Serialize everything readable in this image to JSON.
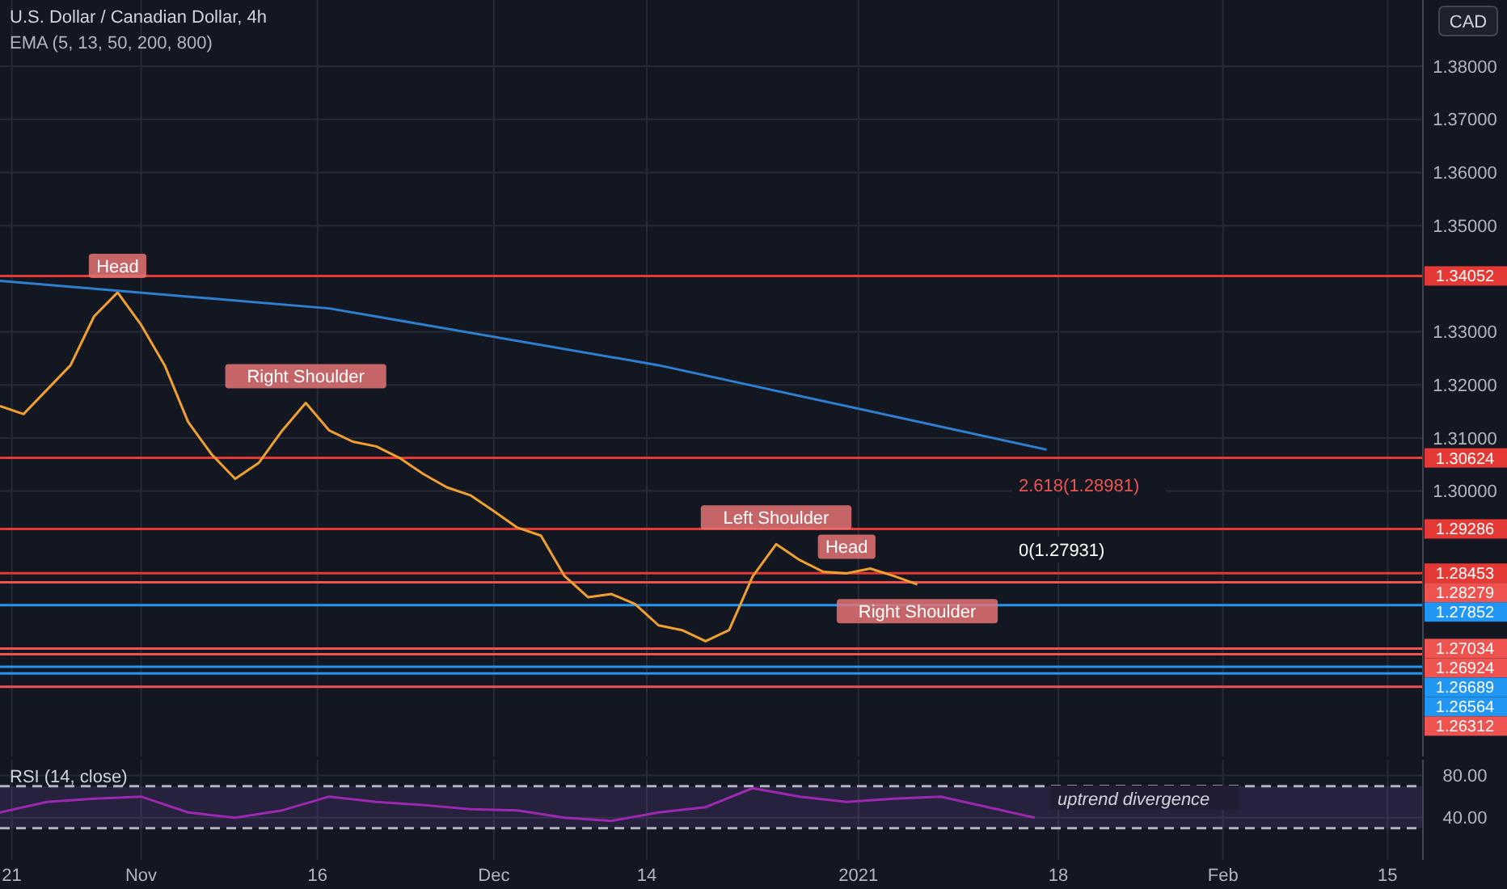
{
  "chart_data": [
    {
      "type": "line",
      "title": "U.S. Dollar / Canadian Dollar, 4h",
      "subtitle": "EMA (5, 13, 50, 200, 800)",
      "xlim": [
        "2020-10-20",
        "2021-02-18"
      ],
      "xticks": [
        {
          "value": "2020-10-21",
          "label": null
        },
        {
          "value": "2020-11-01",
          "label": null
        },
        {
          "value": "2020-11-16",
          "label": null
        },
        {
          "value": "2020-12-01",
          "label": null
        },
        {
          "value": "2020-12-14",
          "label": null
        },
        {
          "value": "2021-01-01",
          "label": null
        },
        {
          "value": "2021-01-18",
          "label": null
        },
        {
          "value": "2021-02-01",
          "label": null
        },
        {
          "value": "2021-02-15",
          "label": null
        }
      ],
      "ylim": [
        1.25,
        1.3925
      ],
      "legend": "right",
      "yticks": [
        {
          "value": 1.3,
          "label": "1.30000"
        },
        {
          "value": 1.31,
          "label": "1.31000"
        },
        {
          "value": 1.32,
          "label": "1.32000"
        },
        {
          "value": 1.33,
          "label": "1.33000"
        },
        {
          "value": 1.35,
          "label": "1.35000"
        },
        {
          "value": 1.36,
          "label": "1.36000"
        },
        {
          "value": 1.37,
          "label": "1.37000"
        },
        {
          "value": 1.38,
          "label": "1.38000"
        }
      ],
      "tick_labels": "y",
      "grid": true,
      "series": [
        {
          "color": "#f0a030",
          "x": [
            "2020-10-20",
            "2020-10-22",
            "2020-10-24",
            "2020-10-26",
            "2020-10-28",
            "2020-10-30",
            "2020-11-01",
            "2020-11-03",
            "2020-11-05",
            "2020-11-07",
            "2020-11-09",
            "2020-11-11",
            "2020-11-13",
            "2020-11-15",
            "2020-11-17",
            "2020-11-19",
            "2020-11-21",
            "2020-11-23",
            "2020-11-25",
            "2020-11-27",
            "2020-11-29",
            "2020-12-01",
            "2020-12-03",
            "2020-12-05",
            "2020-12-07",
            "2020-12-09",
            "2020-12-11",
            "2020-12-13",
            "2020-12-15",
            "2020-12-17",
            "2020-12-19",
            "2020-12-21",
            "2020-12-23",
            "2020-12-25",
            "2020-12-27",
            "2020-12-29",
            "2020-12-31",
            "2021-01-02",
            "2021-01-04",
            "2021-01-06"
          ],
          "values": [
            1.316,
            1.3145,
            1.3191,
            1.3237,
            1.3329,
            1.3374,
            1.3313,
            1.3237,
            1.313,
            1.3069,
            1.3023,
            1.3053,
            1.3114,
            1.3166,
            1.3114,
            1.3093,
            1.3084,
            1.3062,
            1.3032,
            1.3007,
            1.2992,
            1.2962,
            1.2931,
            1.2916,
            1.284,
            1.28,
            1.2806,
            1.2787,
            1.2747,
            1.2738,
            1.2717,
            1.2738,
            1.2839,
            1.29,
            1.287,
            1.2848,
            1.2845,
            1.2854,
            1.284,
            1.2824
          ]
        },
        {
          "color": "#2f7fd0",
          "x": [
            "2020-10-20",
            "2020-11-17",
            "2020-12-15",
            "2021-01-17"
          ],
          "values": [
            1.3396,
            1.3344,
            1.3237,
            1.3078
          ]
        }
      ],
      "ref_lines": [
        {
          "axis": "y",
          "value": 1.34052,
          "label": "1.34052",
          "color": "#e53935"
        },
        {
          "axis": "y",
          "value": 1.30624,
          "label": "1.30624",
          "color": "#e53935"
        },
        {
          "axis": "y",
          "value": 1.29286,
          "label": "1.29286",
          "color": "#e53935"
        },
        {
          "axis": "y",
          "value": 1.28453,
          "label": "1.28453",
          "color": "#e53935"
        },
        {
          "axis": "y",
          "value": 1.28279,
          "label": "1.28279",
          "color": "#ef5350"
        },
        {
          "axis": "y",
          "value": 1.27852,
          "label": "1.27852",
          "color": "#2196f3"
        },
        {
          "axis": "y",
          "value": 1.27034,
          "label": "1.27034",
          "color": "#ef5350"
        },
        {
          "axis": "y",
          "value": 1.26924,
          "label": "1.26924",
          "color": "#ef5350"
        },
        {
          "axis": "y",
          "value": 1.26689,
          "label": "1.26689",
          "color": "#2196f3"
        },
        {
          "axis": "y",
          "value": 1.26564,
          "label": "1.26564",
          "color": "#2196f3"
        },
        {
          "axis": "y",
          "value": 1.26312,
          "label": "1.26312",
          "color": "#ef5350"
        }
      ],
      "annotations": [
        "CAD",
        {
          "text": "Head",
          "x": "2020-10-30",
          "y": 1.3374
        },
        {
          "text": "Right Shoulder",
          "x": "2020-11-15",
          "y": 1.3166
        },
        {
          "text": "Left Shoulder",
          "x": "2020-12-25",
          "y": 1.29
        },
        {
          "text": "Head",
          "x": "2020-12-31",
          "y": 1.2845
        },
        {
          "text": "Right Shoulder",
          "x": "2021-01-06",
          "y": 1.2824
        },
        "2.618(1.28981)",
        "0(1.27931)"
      ]
    },
    {
      "type": "line",
      "title": "RSI (14, close)",
      "xlim": [
        "2020-10-20",
        "2021-02-18"
      ],
      "xticks": [
        {
          "value": "2020-10-21",
          "label": "21"
        },
        {
          "value": "2020-11-01",
          "label": "Nov"
        },
        {
          "value": "2020-11-16",
          "label": "16"
        },
        {
          "value": "2020-12-01",
          "label": "Dec"
        },
        {
          "value": "2020-12-14",
          "label": "14"
        },
        {
          "value": "2021-01-01",
          "label": "2021"
        },
        {
          "value": "2021-01-18",
          "label": "18"
        },
        {
          "value": "2021-02-01",
          "label": "Feb"
        },
        {
          "value": "2021-02-15",
          "label": "15"
        }
      ],
      "ylim": [
        0,
        95
      ],
      "yticks": [
        {
          "value": 40,
          "label": "40.00"
        },
        {
          "value": 80,
          "label": "80.00"
        }
      ],
      "grid": true,
      "series": [
        {
          "color": "#9c27b0",
          "x": [
            "2020-10-20",
            "2020-10-24",
            "2020-10-28",
            "2020-11-01",
            "2020-11-05",
            "2020-11-09",
            "2020-11-13",
            "2020-11-17",
            "2020-11-21",
            "2020-11-25",
            "2020-11-29",
            "2020-12-03",
            "2020-12-07",
            "2020-12-11",
            "2020-12-15",
            "2020-12-19",
            "2020-12-23",
            "2020-12-27",
            "2020-12-31",
            "2021-01-04",
            "2021-01-08",
            "2021-01-12",
            "2021-01-16"
          ],
          "values": [
            45,
            55,
            58,
            60,
            45,
            40,
            47,
            60,
            55,
            52,
            48,
            47,
            40,
            37,
            45,
            50,
            68,
            60,
            55,
            58,
            60,
            50,
            40
          ]
        }
      ],
      "ref_lines": [
        {
          "axis": "y",
          "value": 70,
          "color": "#b2b5be",
          "line_style": "dashed"
        },
        {
          "axis": "y",
          "value": 30,
          "color": "#b2b5be",
          "line_style": "dashed"
        }
      ],
      "bands": [
        {
          "axis": "y",
          "from": 30,
          "to": 70,
          "color": "#7e57c2"
        }
      ],
      "annotations": [
        "uptrend divergence"
      ]
    }
  ]
}
